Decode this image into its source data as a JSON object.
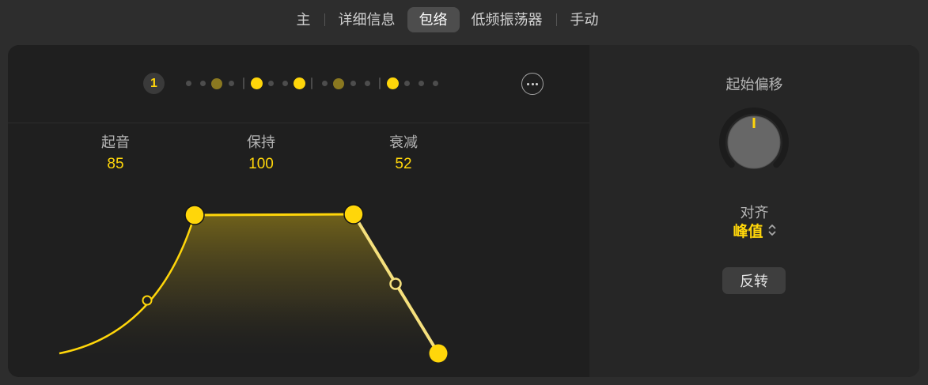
{
  "tabs": {
    "items": [
      {
        "name": "tab-main",
        "label": "主",
        "selected": false,
        "sep_after": true
      },
      {
        "name": "tab-details",
        "label": "详细信息",
        "selected": false,
        "sep_after": false
      },
      {
        "name": "tab-envelope",
        "label": "包络",
        "selected": true,
        "sep_after": false
      },
      {
        "name": "tab-lfo",
        "label": "低频振荡器",
        "selected": false,
        "sep_after": true
      },
      {
        "name": "tab-manual",
        "label": "手动",
        "selected": false,
        "sep_after": false
      }
    ]
  },
  "step_indicator": {
    "current_step": "1",
    "groups": [
      [
        "off",
        "off",
        "mid",
        "off"
      ],
      [
        "on",
        "off",
        "off",
        "on"
      ],
      [
        "off",
        "mid",
        "off",
        "off"
      ],
      [
        "on",
        "off",
        "off",
        "off"
      ]
    ],
    "legend": {
      "off": "inactive step",
      "mid": "dim active step",
      "on": "active step"
    }
  },
  "envelope": {
    "params": [
      {
        "label": "起音",
        "value": "85"
      },
      {
        "label": "保持",
        "value": "100"
      },
      {
        "label": "衰减",
        "value": "52"
      }
    ]
  },
  "side_panel": {
    "knob_label": "起始偏移",
    "align_label": "对齐",
    "align_value": "峰值",
    "invert_button": "反转"
  },
  "colors": {
    "accent_yellow": "#ffd60a",
    "decay_line": "#f5e07d",
    "label_gray": "#b5b5b5",
    "panel_dark": "#1f1f1f",
    "panel_light": "#262626",
    "window_bg": "#2d2d2d"
  }
}
